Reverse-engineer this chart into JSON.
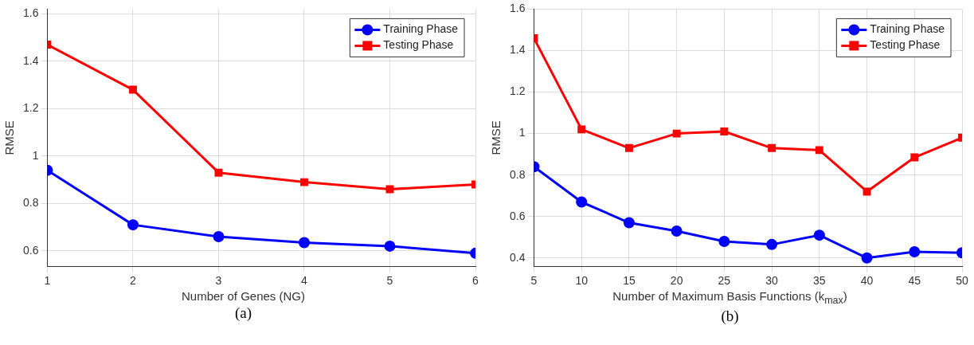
{
  "chart_data": [
    {
      "type": "line",
      "xlabel": "Number of Genes (NG)",
      "ylabel": "RMSE",
      "annotations": [
        "(a)"
      ],
      "x": [
        1,
        2,
        3,
        4,
        5,
        6
      ],
      "xlim": [
        1,
        6
      ],
      "xticks": [
        1,
        2,
        3,
        4,
        5,
        6
      ],
      "ylim": [
        0.535,
        1.62
      ],
      "yticks": [
        0.6,
        0.8,
        1,
        1.2,
        1.4,
        1.6
      ],
      "grid": true,
      "legend": "top right",
      "line_style": "solid",
      "series": [
        {
          "name": "Training Phase",
          "color": "#0000ff",
          "marker": "circle",
          "values": [
            0.94,
            0.71,
            0.66,
            0.635,
            0.62,
            0.59
          ]
        },
        {
          "name": "Testing Phase",
          "color": "#ff0000",
          "marker": "square",
          "values": [
            1.47,
            1.28,
            0.93,
            0.89,
            0.86,
            0.88
          ]
        }
      ]
    },
    {
      "type": "line",
      "xlabel": "Number of Maximum Basis Functions (k$_{max}$)",
      "ylabel": "RMSE",
      "annotations": [
        "(b)"
      ],
      "x": [
        5,
        10,
        15,
        20,
        25,
        30,
        35,
        40,
        45,
        50
      ],
      "xlim": [
        5,
        50
      ],
      "xticks": [
        5,
        10,
        15,
        20,
        25,
        30,
        35,
        40,
        45,
        50
      ],
      "ylim": [
        0.36,
        1.6
      ],
      "yticks": [
        0.4,
        0.6,
        0.8,
        1,
        1.2,
        1.4,
        1.6
      ],
      "grid": true,
      "legend": "top right",
      "line_style": "solid",
      "series": [
        {
          "name": "Training Phase",
          "color": "#0000ff",
          "marker": "circle",
          "values": [
            0.84,
            0.67,
            0.57,
            0.53,
            0.48,
            0.465,
            0.51,
            0.4,
            0.43,
            0.425
          ]
        },
        {
          "name": "Testing Phase",
          "color": "#ff0000",
          "marker": "square",
          "values": [
            1.46,
            1.02,
            0.93,
            1.0,
            1.01,
            0.93,
            0.92,
            0.72,
            0.885,
            0.98
          ]
        }
      ]
    }
  ]
}
